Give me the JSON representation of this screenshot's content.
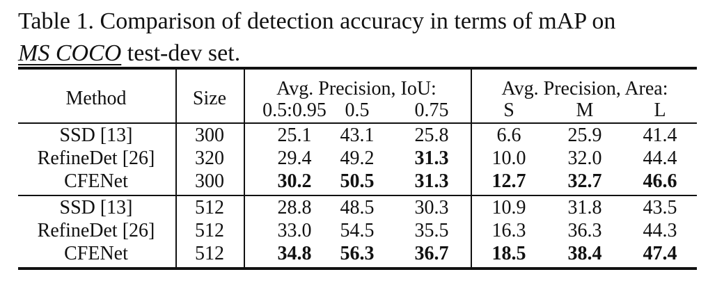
{
  "caption": {
    "line1": "Table 1. Comparison of detection accuracy in terms of mAP on",
    "line2_italic": "MS COCO",
    "line2_rest": " test-dev set."
  },
  "table": {
    "header": {
      "method": "Method",
      "size": "Size",
      "group_iou": "Avg. Precision, IoU:",
      "group_area": "Avg. Precision, Area:",
      "subcols": [
        "0.5:0.95",
        "0.5",
        "0.75",
        "S",
        "M",
        "L"
      ]
    },
    "rows": [
      {
        "method": "SSD [13]",
        "size": "300",
        "vals": [
          "25.1",
          "43.1",
          "25.8",
          "6.6",
          "25.9",
          "41.4"
        ],
        "bold": [
          false,
          false,
          false,
          false,
          false,
          false
        ]
      },
      {
        "method": "RefineDet [26]",
        "size": "320",
        "vals": [
          "29.4",
          "49.2",
          "31.3",
          "10.0",
          "32.0",
          "44.4"
        ],
        "bold": [
          false,
          false,
          true,
          false,
          false,
          false
        ]
      },
      {
        "method": "CFENet",
        "size": "300",
        "vals": [
          "30.2",
          "50.5",
          "31.3",
          "12.7",
          "32.7",
          "46.6"
        ],
        "bold": [
          true,
          true,
          true,
          true,
          true,
          true
        ]
      },
      {
        "method": "SSD [13]",
        "size": "512",
        "vals": [
          "28.8",
          "48.5",
          "30.3",
          "10.9",
          "31.8",
          "43.5"
        ],
        "bold": [
          false,
          false,
          false,
          false,
          false,
          false
        ]
      },
      {
        "method": "RefineDet [26]",
        "size": "512",
        "vals": [
          "33.0",
          "54.5",
          "35.5",
          "16.3",
          "36.3",
          "44.3"
        ],
        "bold": [
          false,
          false,
          false,
          false,
          false,
          false
        ]
      },
      {
        "method": "CFENet",
        "size": "512",
        "vals": [
          "34.8",
          "56.3",
          "36.7",
          "18.5",
          "38.4",
          "47.4"
        ],
        "bold": [
          true,
          true,
          true,
          true,
          true,
          true
        ]
      }
    ]
  }
}
